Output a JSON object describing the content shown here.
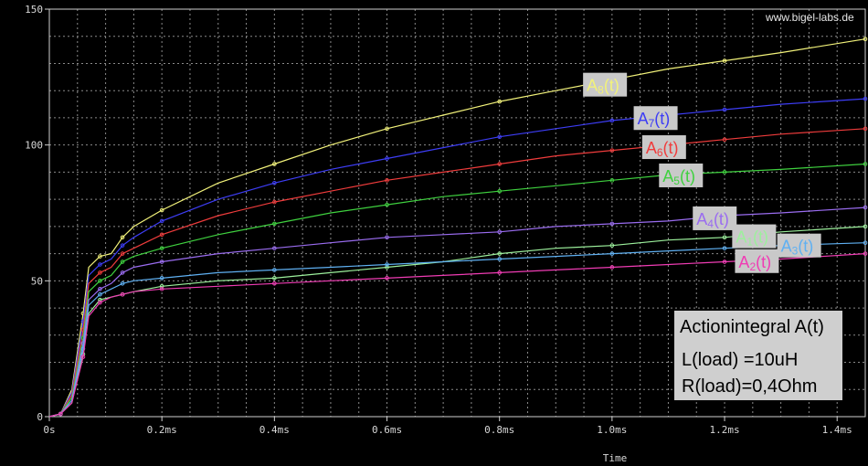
{
  "watermark": "www.bigel-labs.de",
  "chart_data": {
    "type": "line",
    "xlabel": "Time",
    "ylabel": "",
    "x_unit": "ms",
    "xlim": [
      0,
      1.45
    ],
    "ylim": [
      0,
      150
    ],
    "x_ticks": [
      {
        "value": 0,
        "label": "0s"
      },
      {
        "value": 0.2,
        "label": "0.2ms"
      },
      {
        "value": 0.4,
        "label": "0.4ms"
      },
      {
        "value": 0.6,
        "label": "0.6ms"
      },
      {
        "value": 0.8,
        "label": "0.8ms"
      },
      {
        "value": 1.0,
        "label": "1.0ms"
      },
      {
        "value": 1.2,
        "label": "1.2ms"
      },
      {
        "value": 1.4,
        "label": "1.4ms"
      }
    ],
    "y_ticks": [
      {
        "value": 0,
        "label": "0"
      },
      {
        "value": 50,
        "label": "50"
      },
      {
        "value": 100,
        "label": "100"
      },
      {
        "value": 150,
        "label": "150"
      }
    ],
    "grid": true,
    "background": "#000000",
    "series": [
      {
        "name": "A8(t)",
        "label_main": "A",
        "label_sub": "8",
        "label_suffix": "(t)",
        "color": "#f2f27a",
        "x": [
          0,
          0.02,
          0.04,
          0.06,
          0.07,
          0.09,
          0.11,
          0.13,
          0.15,
          0.2,
          0.3,
          0.4,
          0.5,
          0.6,
          0.7,
          0.8,
          0.9,
          1.0,
          1.1,
          1.2,
          1.3,
          1.45
        ],
        "y": [
          0,
          1,
          10,
          38,
          55,
          59,
          60,
          66,
          70,
          76,
          86,
          93,
          100,
          106,
          111,
          116,
          120,
          124,
          128,
          131,
          134,
          139
        ]
      },
      {
        "name": "A7(t)",
        "label_main": "A",
        "label_sub": "7",
        "label_suffix": "(t)",
        "color": "#3d3df5",
        "x": [
          0,
          0.02,
          0.04,
          0.06,
          0.07,
          0.09,
          0.11,
          0.13,
          0.15,
          0.2,
          0.3,
          0.4,
          0.5,
          0.6,
          0.7,
          0.8,
          0.9,
          1.0,
          1.1,
          1.2,
          1.3,
          1.45
        ],
        "y": [
          0,
          1,
          9,
          35,
          52,
          56,
          58,
          63,
          66,
          72,
          80,
          86,
          91,
          95,
          99,
          103,
          106,
          109,
          111,
          113,
          115,
          117
        ]
      },
      {
        "name": "A6(t)",
        "label_main": "A",
        "label_sub": "6",
        "label_suffix": "(t)",
        "color": "#f03c3c",
        "x": [
          0,
          0.02,
          0.04,
          0.06,
          0.07,
          0.09,
          0.11,
          0.13,
          0.15,
          0.2,
          0.3,
          0.4,
          0.5,
          0.6,
          0.7,
          0.8,
          0.9,
          1.0,
          1.1,
          1.2,
          1.3,
          1.45
        ],
        "y": [
          0,
          1,
          8,
          32,
          49,
          53,
          55,
          60,
          62,
          67,
          74,
          79,
          83,
          87,
          90,
          93,
          96,
          98,
          100,
          102,
          104,
          106
        ]
      },
      {
        "name": "A5(t)",
        "label_main": "A",
        "label_sub": "5",
        "label_suffix": "(t)",
        "color": "#3fd13f",
        "x": [
          0,
          0.02,
          0.04,
          0.06,
          0.07,
          0.09,
          0.11,
          0.13,
          0.15,
          0.2,
          0.3,
          0.4,
          0.5,
          0.6,
          0.7,
          0.8,
          0.9,
          1.0,
          1.1,
          1.2,
          1.3,
          1.45
        ],
        "y": [
          0,
          1,
          7,
          29,
          46,
          50,
          52,
          57,
          59,
          62,
          67,
          71,
          75,
          78,
          81,
          83,
          85,
          87,
          89,
          90,
          91,
          93
        ]
      },
      {
        "name": "A4(t)",
        "label_main": "A",
        "label_sub": "4",
        "label_suffix": "(t)",
        "color": "#9a6cf0",
        "x": [
          0,
          0.02,
          0.04,
          0.06,
          0.07,
          0.09,
          0.11,
          0.13,
          0.15,
          0.2,
          0.3,
          0.4,
          0.5,
          0.6,
          0.7,
          0.8,
          0.9,
          1.0,
          1.1,
          1.2,
          1.3,
          1.45
        ],
        "y": [
          0,
          1,
          6,
          27,
          43,
          47,
          49,
          53,
          55,
          57,
          60,
          62,
          64,
          66,
          67,
          68,
          70,
          71,
          72,
          74,
          75,
          77
        ]
      },
      {
        "name": "A1(t)",
        "label_main": "A",
        "label_sub": "1",
        "label_suffix": "(t)",
        "color": "#9cf09c",
        "x": [
          0,
          0.02,
          0.04,
          0.06,
          0.07,
          0.09,
          0.11,
          0.13,
          0.15,
          0.2,
          0.3,
          0.4,
          0.5,
          0.6,
          0.7,
          0.8,
          0.9,
          1.0,
          1.1,
          1.2,
          1.3,
          1.45
        ],
        "y": [
          0,
          1,
          5,
          23,
          38,
          43,
          44,
          45,
          46,
          48,
          50,
          51,
          53,
          55,
          57,
          60,
          62,
          63,
          65,
          66,
          68,
          70
        ]
      },
      {
        "name": "A3(t)",
        "label_main": "A",
        "label_sub": "3",
        "label_suffix": "(t)",
        "color": "#5fb0f2",
        "x": [
          0,
          0.02,
          0.04,
          0.06,
          0.07,
          0.09,
          0.11,
          0.13,
          0.15,
          0.2,
          0.3,
          0.4,
          0.5,
          0.6,
          0.7,
          0.8,
          0.9,
          1.0,
          1.1,
          1.2,
          1.3,
          1.45
        ],
        "y": [
          0,
          1,
          6,
          25,
          41,
          45,
          47,
          49,
          50,
          51,
          53,
          54,
          55,
          56,
          57,
          58,
          59,
          60,
          61,
          62,
          63,
          64
        ]
      },
      {
        "name": "A2(t)",
        "label_main": "A",
        "label_sub": "2",
        "label_suffix": "(t)",
        "color": "#f03cb4",
        "x": [
          0,
          0.02,
          0.04,
          0.06,
          0.07,
          0.09,
          0.11,
          0.13,
          0.15,
          0.2,
          0.3,
          0.4,
          0.5,
          0.6,
          0.7,
          0.8,
          0.9,
          1.0,
          1.1,
          1.2,
          1.3,
          1.45
        ],
        "y": [
          0,
          1,
          5,
          22,
          37,
          42,
          44,
          45,
          46,
          47,
          48,
          49,
          50,
          51,
          52,
          53,
          54,
          55,
          56,
          57,
          58,
          60
        ]
      }
    ]
  },
  "info_box": {
    "title": "Actionintegral  A(t)",
    "line1": "L(load) =10uH",
    "line2": "R(load)=0,4Ohm"
  }
}
